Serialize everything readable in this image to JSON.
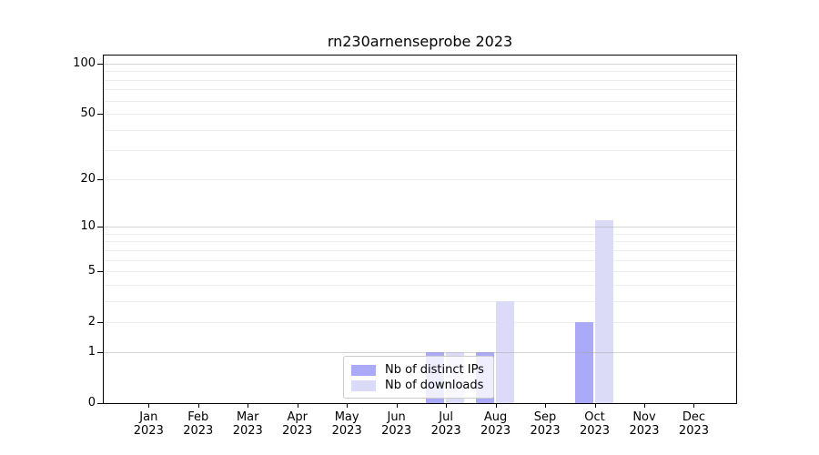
{
  "chart_data": {
    "type": "bar",
    "title": "rn230arnenseprobe 2023",
    "categories": [
      {
        "month": "Jan",
        "year": "2023"
      },
      {
        "month": "Feb",
        "year": "2023"
      },
      {
        "month": "Mar",
        "year": "2023"
      },
      {
        "month": "Apr",
        "year": "2023"
      },
      {
        "month": "May",
        "year": "2023"
      },
      {
        "month": "Jun",
        "year": "2023"
      },
      {
        "month": "Jul",
        "year": "2023"
      },
      {
        "month": "Aug",
        "year": "2023"
      },
      {
        "month": "Sep",
        "year": "2023"
      },
      {
        "month": "Oct",
        "year": "2023"
      },
      {
        "month": "Nov",
        "year": "2023"
      },
      {
        "month": "Dec",
        "year": "2023"
      }
    ],
    "series": [
      {
        "name": "Nb of distinct IPs",
        "color": "#aaaaf8",
        "values": [
          0,
          0,
          0,
          0,
          0,
          0,
          1,
          1,
          0,
          2,
          0,
          0
        ]
      },
      {
        "name": "Nb of downloads",
        "color": "#dbdbf8",
        "values": [
          0,
          0,
          0,
          0,
          0,
          0,
          1,
          3,
          0,
          11,
          0,
          0
        ]
      }
    ],
    "y_axis": {
      "scale": "log1p",
      "min": 0,
      "max": 100,
      "ticks": [
        0,
        1,
        2,
        5,
        10,
        20,
        50,
        100
      ],
      "minor_gridlines": [
        2,
        3,
        4,
        5,
        6,
        7,
        8,
        9,
        20,
        30,
        40,
        50,
        60,
        70,
        80,
        90
      ],
      "major_gridlines": [
        1,
        10,
        100
      ]
    },
    "legend_position": "bottom-center",
    "grid": "horizontal"
  }
}
